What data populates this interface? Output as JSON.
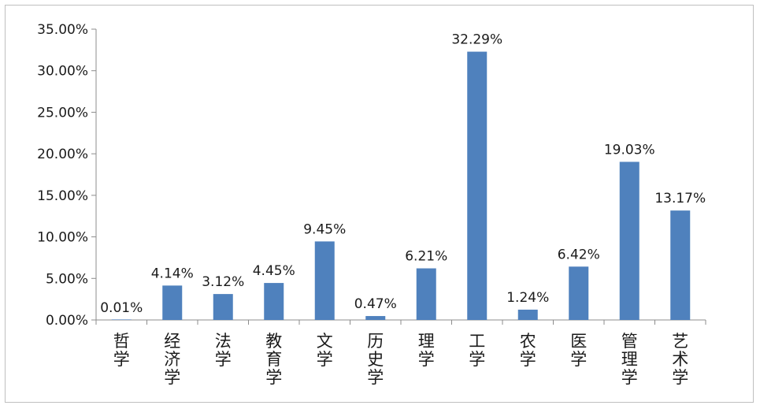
{
  "chart_data": {
    "type": "bar",
    "categories": [
      "哲学",
      "经济学",
      "法学",
      "教育学",
      "文学",
      "历史学",
      "理学",
      "工学",
      "农学",
      "医学",
      "管理学",
      "艺术学"
    ],
    "category_lines": [
      [
        "哲",
        "学"
      ],
      [
        "经",
        "济",
        "学"
      ],
      [
        "法",
        "学"
      ],
      [
        "教",
        "育",
        "学"
      ],
      [
        "文",
        "学"
      ],
      [
        "历",
        "史",
        "学"
      ],
      [
        "理",
        "学"
      ],
      [
        "工",
        "学"
      ],
      [
        "农",
        "学"
      ],
      [
        "医",
        "学"
      ],
      [
        "管",
        "理",
        "学"
      ],
      [
        "艺",
        "术",
        "学"
      ]
    ],
    "values": [
      0.01,
      4.14,
      3.12,
      4.45,
      9.45,
      0.47,
      6.21,
      32.29,
      1.24,
      6.42,
      19.03,
      13.17
    ],
    "data_labels": [
      "0.01%",
      "4.14%",
      "3.12%",
      "4.45%",
      "9.45%",
      "0.47%",
      "6.21%",
      "32.29%",
      "1.24%",
      "6.42%",
      "19.03%",
      "13.17%"
    ],
    "yticks": [
      0,
      5,
      10,
      15,
      20,
      25,
      30,
      35
    ],
    "ytick_labels": [
      "0.00%",
      "5.00%",
      "10.00%",
      "15.00%",
      "20.00%",
      "25.00%",
      "30.00%",
      "35.00%"
    ],
    "ylim": [
      0,
      35
    ],
    "bar_color": "#4F81BD",
    "grid": false,
    "title": "",
    "xlabel": "",
    "ylabel": ""
  }
}
